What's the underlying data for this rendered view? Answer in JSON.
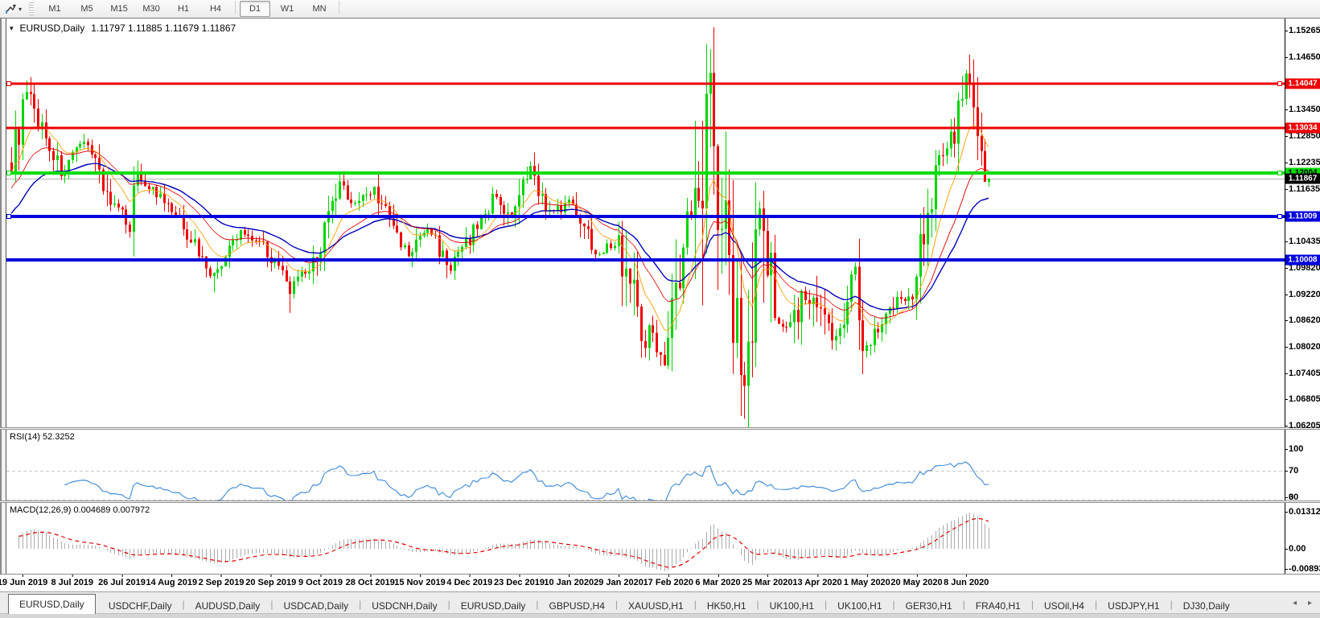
{
  "toolbar": {
    "timeframes": [
      "M1",
      "M5",
      "M15",
      "M30",
      "H1",
      "H4",
      "D1",
      "W1",
      "MN"
    ],
    "active_timeframe": "D1"
  },
  "icons": {
    "cursor_mode": "chart-cursor",
    "title_dropdown": "▾",
    "tab_scroll_left": "◂",
    "tab_scroll_right": "▸"
  },
  "window": {
    "title_symbol": "EURUSD,Daily",
    "title_ohlc": "1.11797 1.11885 1.11679 1.11867"
  },
  "price_axis": {
    "labels": [
      "1.15265",
      "1.14650",
      "1.13450",
      "1.12850",
      "1.12235",
      "1.11635",
      "1.10435",
      "1.09820",
      "1.09220",
      "1.08620",
      "1.08020",
      "1.07405",
      "1.06805",
      "1.06205"
    ]
  },
  "hlines": [
    {
      "price": 1.14047,
      "label": "1.14047",
      "color": "#ee0000",
      "text_color": "#ffffff",
      "width": 3,
      "selected": true
    },
    {
      "price": 1.13034,
      "label": "1.13034",
      "color": "#ee0000",
      "text_color": "#ffffff",
      "width": 3,
      "selected": false
    },
    {
      "price": 1.12004,
      "label": "1.12004",
      "color": "#00dc00",
      "text_color": "#000000",
      "width": 4,
      "selected": true
    },
    {
      "price": 1.11009,
      "label": "1.11009",
      "color": "#0000dc",
      "text_color": "#ffffff",
      "width": 4,
      "selected": true
    },
    {
      "price": 1.10008,
      "label": "1.10008",
      "color": "#0000dc",
      "text_color": "#ffffff",
      "width": 4,
      "selected": false
    }
  ],
  "current_price": {
    "price": 1.11867,
    "label": "1.11867",
    "line_color": "#b4b4b4",
    "badge_bg": "#000000",
    "text_color": "#ffffff"
  },
  "rsi_panel": {
    "label": "RSI(14) 52.3252",
    "period": 14,
    "value": 52.3252,
    "line_color": "#4a90d9",
    "levels": [
      {
        "v": 100,
        "label": "100",
        "dashed": false
      },
      {
        "v": 70,
        "label": "70",
        "dashed": true
      },
      {
        "v": 30,
        "label": "30",
        "dashed": true
      },
      {
        "v": 0,
        "label": "0",
        "dashed": false
      }
    ]
  },
  "macd_panel": {
    "label": "MACD(12,26,9) 0.004689 0.007972",
    "fast": 12,
    "slow": 26,
    "signal": 9,
    "macd_value": 0.004689,
    "signal_value": 0.007972,
    "histogram_color": "#ababab",
    "signal_color": "#e00000",
    "axis_labels": [
      {
        "v": 0.013121,
        "label": "0.013121"
      },
      {
        "v": 0,
        "label": "0.00"
      },
      {
        "v": -0.008933,
        "label": "-0.008933"
      }
    ]
  },
  "date_axis": {
    "labels": [
      "19 Jun 2019",
      "8 Jul 2019",
      "26 Jul 2019",
      "14 Aug 2019",
      "2 Sep 2019",
      "20 Sep 2019",
      "9 Oct 2019",
      "28 Oct 2019",
      "15 Nov 2019",
      "4 Dec 2019",
      "23 Dec 2019",
      "10 Jan 2020",
      "29 Jan 2020",
      "17 Feb 2020",
      "6 Mar 2020",
      "25 Mar 2020",
      "13 Apr 2020",
      "1 May 2020",
      "20 May 2020",
      "8 Jun 2020"
    ]
  },
  "tabs": {
    "active_index": 0,
    "items": [
      "EURUSD,Daily",
      "USDCHF,Daily",
      "AUDUSD,Daily",
      "USDCAD,Daily",
      "USDCNH,Daily",
      "EURUSD,Daily",
      "GBPUSD,H4",
      "XAUUSD,H1",
      "HK50,H1",
      "UK100,H1",
      "UK100,H1",
      "GER30,H1",
      "FRA40,H1",
      "USOil,H4",
      "USDJPY,H1",
      "DJ30,Daily"
    ]
  },
  "chart_data": {
    "type": "candlestick",
    "symbol": "EURUSD",
    "timeframe": "Daily",
    "current_ohlc": {
      "open": 1.11797,
      "high": 1.11885,
      "low": 1.11679,
      "close": 1.11867
    },
    "n_candles": 257,
    "price_top": 1.15523,
    "price_bottom": 1.06167,
    "up_color": "#00d400",
    "down_color": "#ee0000",
    "close_anchors": [
      [
        0,
        1.1224
      ],
      [
        4,
        1.1379
      ],
      [
        9,
        1.1285
      ],
      [
        13,
        1.12
      ],
      [
        20,
        1.1276
      ],
      [
        26,
        1.113
      ],
      [
        31,
        1.1085
      ],
      [
        33,
        1.12
      ],
      [
        39,
        1.114
      ],
      [
        45,
        1.108
      ],
      [
        51,
        1.099
      ],
      [
        53,
        1.0965
      ],
      [
        60,
        1.1065
      ],
      [
        66,
        1.104
      ],
      [
        73,
        1.093
      ],
      [
        79,
        1.099
      ],
      [
        86,
        1.117
      ],
      [
        90,
        1.113
      ],
      [
        95,
        1.1165
      ],
      [
        102,
        1.1035
      ],
      [
        104,
        1.101
      ],
      [
        109,
        1.1075
      ],
      [
        115,
        1.098
      ],
      [
        122,
        1.108
      ],
      [
        127,
        1.115
      ],
      [
        131,
        1.109
      ],
      [
        136,
        1.121
      ],
      [
        141,
        1.1105
      ],
      [
        147,
        1.1135
      ],
      [
        153,
        1.102
      ],
      [
        159,
        1.104
      ],
      [
        166,
        1.084
      ],
      [
        171,
        1.079
      ],
      [
        176,
        1.1
      ],
      [
        181,
        1.128
      ],
      [
        182,
        1.145
      ],
      [
        185,
        1.118
      ],
      [
        188,
        1.099
      ],
      [
        192,
        1.072
      ],
      [
        195,
        1.103
      ],
      [
        196,
        1.111
      ],
      [
        200,
        1.086
      ],
      [
        204,
        1.086
      ],
      [
        208,
        1.0915
      ],
      [
        211,
        1.0875
      ],
      [
        216,
        1.082
      ],
      [
        221,
        1.098
      ],
      [
        223,
        1.0795
      ],
      [
        227,
        1.085
      ],
      [
        232,
        1.092
      ],
      [
        235,
        1.09
      ],
      [
        239,
        1.1077
      ],
      [
        243,
        1.1233
      ],
      [
        247,
        1.1295
      ],
      [
        249,
        1.139
      ],
      [
        250,
        1.1422
      ],
      [
        252,
        1.137
      ],
      [
        254,
        1.1255
      ],
      [
        255,
        1.124
      ],
      [
        256,
        1.1187
      ]
    ],
    "extreme_highs": [
      [
        4,
        1.1412
      ],
      [
        182,
        1.1495
      ],
      [
        250,
        1.1422
      ]
    ],
    "extreme_lows": [
      [
        53,
        1.0926
      ],
      [
        73,
        1.0879
      ],
      [
        171,
        1.0778
      ],
      [
        192,
        1.0636
      ]
    ],
    "moving_averages": [
      {
        "period": 10,
        "color": "#ff9f00",
        "width": 1
      },
      {
        "period": 21,
        "color": "#e00000",
        "width": 1
      },
      {
        "period": 34,
        "color": "#0000b8",
        "width": 1.4
      }
    ]
  }
}
